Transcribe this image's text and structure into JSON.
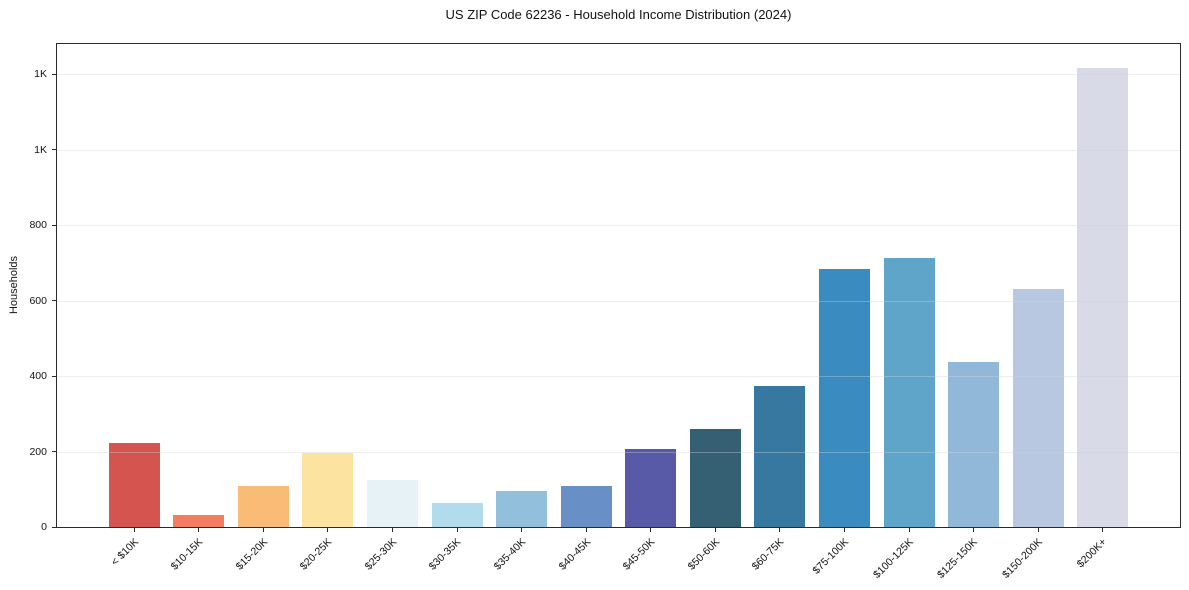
{
  "title": "US ZIP Code 62236 - Household Income Distribution (2024)",
  "chart_data": {
    "type": "bar",
    "title": "US ZIP Code 62236 - Household Income Distribution (2024)",
    "xlabel": "",
    "ylabel": "Households",
    "legend": "none",
    "grid": "horizontal-light",
    "ylim": [
      0,
      1280
    ],
    "yticks": [
      {
        "value": 0,
        "label": "0"
      },
      {
        "value": 200,
        "label": "200"
      },
      {
        "value": 400,
        "label": "400"
      },
      {
        "value": 600,
        "label": "600"
      },
      {
        "value": 800,
        "label": "800"
      },
      {
        "value": 1000,
        "label": "1K"
      },
      {
        "value": 1200,
        "label": "1K"
      }
    ],
    "categories": [
      "< $10K",
      "$10-15K",
      "$15-20K",
      "$20-25K",
      "$25-30K",
      "$30-35K",
      "$35-40K",
      "$40-45K",
      "$45-50K",
      "$50-60K",
      "$60-75K",
      "$75-100K",
      "$100-125K",
      "$125-150K",
      "$150-200K",
      "$200K+"
    ],
    "values": [
      223,
      32,
      108,
      195,
      124,
      63,
      96,
      110,
      207,
      259,
      374,
      685,
      713,
      437,
      630,
      1216
    ],
    "bar_colors": [
      "#d6544f",
      "#f37d5e",
      "#fabb76",
      "#fde3a0",
      "#e6f2f5",
      "#b2dcec",
      "#91bfdc",
      "#6890c6",
      "#5859a7",
      "#356074",
      "#36789f",
      "#3a8cc0",
      "#5fa5c9",
      "#91b8d9",
      "#b8c8e1",
      "#d8dae8"
    ]
  }
}
